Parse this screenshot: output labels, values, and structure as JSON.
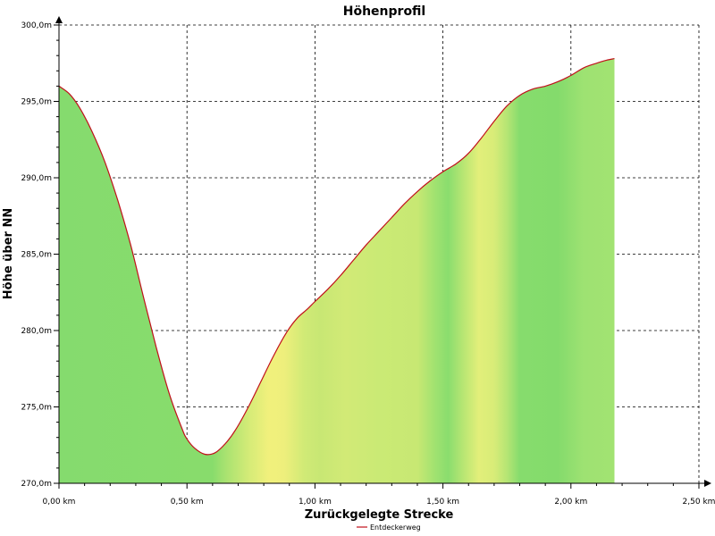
{
  "chart_data": {
    "type": "area",
    "title": "Höhenprofil",
    "xlabel": "Zurückgelegte Strecke",
    "ylabel": "Höhe über NN",
    "xlim": [
      0,
      2.5
    ],
    "ylim": [
      270,
      300
    ],
    "grid": true,
    "legend_placement": "bottom-center",
    "x_ticks": [
      {
        "value": 0,
        "label": "0,00 km"
      },
      {
        "value": 0.5,
        "label": "0,50 km"
      },
      {
        "value": 1.0,
        "label": "1,00 km"
      },
      {
        "value": 1.5,
        "label": "1,50 km"
      },
      {
        "value": 2.0,
        "label": "2,00 km"
      },
      {
        "value": 2.5,
        "label": "2,50 km"
      }
    ],
    "y_ticks": [
      {
        "value": 270,
        "label": "270,0m"
      },
      {
        "value": 275,
        "label": "275,0m"
      },
      {
        "value": 280,
        "label": "280,0m"
      },
      {
        "value": 285,
        "label": "285,0m"
      },
      {
        "value": 290,
        "label": "290,0m"
      },
      {
        "value": 295,
        "label": "295,0m"
      },
      {
        "value": 300,
        "label": "300,0m"
      }
    ],
    "series": [
      {
        "name": "Entdeckerweg",
        "line_color": "#c0101a",
        "x": [
          0,
          0.04,
          0.08,
          0.13,
          0.18,
          0.23,
          0.28,
          0.33,
          0.38,
          0.43,
          0.48,
          0.5,
          0.53,
          0.57,
          0.61,
          0.65,
          0.69,
          0.74,
          0.79,
          0.84,
          0.89,
          0.93,
          0.97,
          1.0,
          1.05,
          1.1,
          1.15,
          1.2,
          1.25,
          1.3,
          1.35,
          1.4,
          1.45,
          1.5,
          1.55,
          1.6,
          1.65,
          1.7,
          1.75,
          1.8,
          1.85,
          1.9,
          1.95,
          2.0,
          2.05,
          2.1,
          2.14,
          2.17
        ],
        "y": [
          296.0,
          295.5,
          294.6,
          293.0,
          291.0,
          288.5,
          285.6,
          282.2,
          278.9,
          275.9,
          273.6,
          272.9,
          272.3,
          271.9,
          272.0,
          272.6,
          273.5,
          275.0,
          276.7,
          278.4,
          279.9,
          280.8,
          281.4,
          281.9,
          282.7,
          283.6,
          284.6,
          285.6,
          286.5,
          287.4,
          288.3,
          289.1,
          289.8,
          290.4,
          290.9,
          291.6,
          292.6,
          293.7,
          294.7,
          295.4,
          295.8,
          296.0,
          296.3,
          296.7,
          297.2,
          297.5,
          297.7,
          297.8
        ]
      }
    ],
    "fill_gradient": [
      {
        "x": 0.0,
        "color": "#85db6e"
      },
      {
        "x": 0.6,
        "color": "#88dc6c"
      },
      {
        "x": 0.65,
        "color": "#a8e270"
      },
      {
        "x": 0.75,
        "color": "#d8ec78"
      },
      {
        "x": 0.82,
        "color": "#f1f07c"
      },
      {
        "x": 0.88,
        "color": "#eeef7c"
      },
      {
        "x": 0.96,
        "color": "#d0ea76"
      },
      {
        "x": 1.02,
        "color": "#c8e774"
      },
      {
        "x": 1.12,
        "color": "#d2ea76"
      },
      {
        "x": 1.25,
        "color": "#caea75"
      },
      {
        "x": 1.4,
        "color": "#c8e873"
      },
      {
        "x": 1.47,
        "color": "#a0e270"
      },
      {
        "x": 1.52,
        "color": "#8add6e"
      },
      {
        "x": 1.58,
        "color": "#b8e673"
      },
      {
        "x": 1.64,
        "color": "#e2ef7a"
      },
      {
        "x": 1.7,
        "color": "#d8ec78"
      },
      {
        "x": 1.75,
        "color": "#b6e574"
      },
      {
        "x": 1.8,
        "color": "#86dc6d"
      },
      {
        "x": 1.95,
        "color": "#84db6c"
      },
      {
        "x": 2.05,
        "color": "#9ee272"
      },
      {
        "x": 2.17,
        "color": "#a2e372"
      }
    ]
  }
}
